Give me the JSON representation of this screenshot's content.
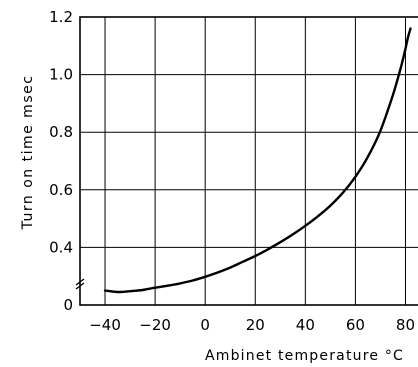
{
  "chart_data": {
    "type": "line",
    "title": "",
    "xlabel": "Ambinet temperature °C",
    "ylabel": "Turn on time msec",
    "xlim": [
      -50,
      85
    ],
    "ylim": [
      0.2,
      1.2
    ],
    "x_ticks": [
      {
        "value": -40,
        "label": "−40"
      },
      {
        "value": -20,
        "label": "−20"
      },
      {
        "value": 0,
        "label": "0"
      },
      {
        "value": 20,
        "label": "20"
      },
      {
        "value": 40,
        "label": "40"
      },
      {
        "value": 60,
        "label": "60"
      },
      {
        "value": 80,
        "label": "80"
      }
    ],
    "y_ticks": [
      {
        "value": 0.2,
        "label": "0"
      },
      {
        "value": 0.4,
        "label": "0.4"
      },
      {
        "value": 0.6,
        "label": "0.6"
      },
      {
        "value": 0.8,
        "label": "0.8"
      },
      {
        "value": 1.0,
        "label": "1.0"
      },
      {
        "value": 1.2,
        "label": "1.2"
      }
    ],
    "axis_break": true,
    "grid": true,
    "legend": "none",
    "line_color": "#000000",
    "series": [
      {
        "x": [
          -40,
          -35,
          -30,
          -25,
          -20,
          -15,
          -10,
          -5,
          0,
          5,
          10,
          15,
          20,
          25,
          30,
          35,
          40,
          45,
          50,
          55,
          60,
          65,
          70,
          75,
          78,
          80,
          81,
          82
        ],
        "y": [
          0.25,
          0.245,
          0.248,
          0.252,
          0.26,
          0.267,
          0.275,
          0.285,
          0.298,
          0.313,
          0.33,
          0.35,
          0.37,
          0.393,
          0.418,
          0.445,
          0.475,
          0.508,
          0.545,
          0.59,
          0.645,
          0.715,
          0.805,
          0.93,
          1.02,
          1.09,
          1.13,
          1.16
        ]
      }
    ]
  }
}
